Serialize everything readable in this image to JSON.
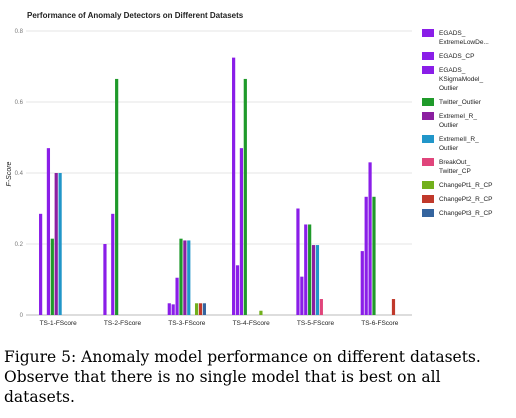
{
  "chart_data": {
    "type": "bar",
    "title": "Performance of Anomaly Detectors on Different Datasets",
    "ylabel": "F-Score",
    "xlabel": "",
    "ylim": [
      0,
      0.8
    ],
    "yticks": [
      "0",
      "0.2",
      "0.4",
      "0.6",
      "0.8"
    ],
    "grid": true,
    "legend_position": "right",
    "categories": [
      "TS-1-FScore",
      "TS-2-FScore",
      "TS-3-FScore",
      "TS-4-FScore",
      "TS-5-FScore",
      "TS-6-FScore"
    ],
    "series": [
      {
        "name": "EGADS_ ExtremeLowDe...",
        "legend_lines": [
          "EGADS_",
          "ExtremeLowDe..."
        ],
        "color": "#8a1ee8",
        "values": [
          0.285,
          0.2,
          0.033,
          0.725,
          0.3,
          0.18
        ]
      },
      {
        "name": "EGADS_CP",
        "legend_lines": [
          "EGADS_CP"
        ],
        "color": "#8a1ee8",
        "values": [
          0,
          0,
          0.03,
          0.14,
          0.108,
          0.333
        ]
      },
      {
        "name": "EGADS_ KSigmaModel_ Outlier",
        "legend_lines": [
          "EGADS_",
          "KSigmaModel_",
          "Outlier"
        ],
        "color": "#8a1ee8",
        "values": [
          0.47,
          0.285,
          0.105,
          0.47,
          0.255,
          0.43
        ]
      },
      {
        "name": "Twitter_Outlier",
        "legend_lines": [
          "Twitter_Outlier"
        ],
        "color": "#1f9a2a",
        "values": [
          0.215,
          0.665,
          0.215,
          0.665,
          0.255,
          0.333
        ]
      },
      {
        "name": "ExtremeI_R_ Outlier",
        "legend_lines": [
          "ExtremeI_R_",
          "Outlier"
        ],
        "color": "#8b1fa0",
        "values": [
          0.4,
          0,
          0.21,
          0,
          0.197,
          0
        ]
      },
      {
        "name": "ExtremeII_R_ Outlier",
        "legend_lines": [
          "ExtremeII_R_",
          "Outlier"
        ],
        "color": "#2196c9",
        "values": [
          0.4,
          0,
          0.21,
          0,
          0.197,
          0
        ]
      },
      {
        "name": "BreakOut_ Twitter_CP",
        "legend_lines": [
          "BreakOut_",
          "Twitter_CP"
        ],
        "color": "#e0457b",
        "values": [
          0,
          0,
          0,
          0,
          0.045,
          0
        ]
      },
      {
        "name": "ChangePt1_R_CP",
        "legend_lines": [
          "ChangePt1_R_CP"
        ],
        "color": "#72b01c",
        "values": [
          0,
          0,
          0.033,
          0.012,
          0,
          0
        ]
      },
      {
        "name": "ChangePt2_R_CP",
        "legend_lines": [
          "ChangePt2_R_CP"
        ],
        "color": "#c0392b",
        "values": [
          0,
          0,
          0.033,
          0,
          0,
          0.045
        ]
      },
      {
        "name": "ChangePt3_R_CP",
        "legend_lines": [
          "ChangePt3_R_CP"
        ],
        "color": "#34649e",
        "values": [
          0,
          0,
          0.033,
          0,
          0,
          0
        ]
      }
    ]
  },
  "caption": "Figure 5: Anomaly model performance on different datasets. Observe that there is no single model that is best on all datasets."
}
